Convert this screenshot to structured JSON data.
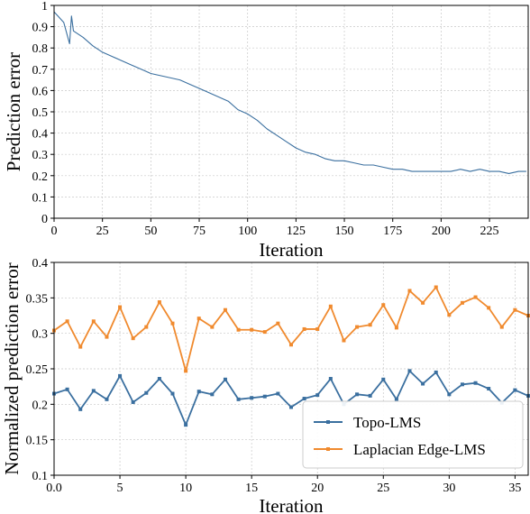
{
  "chart_data": [
    {
      "type": "line",
      "xlabel": "Iteration",
      "ylabel": "Prediction error",
      "xlim": [
        0,
        245
      ],
      "ylim": [
        0,
        1
      ],
      "xticks": [
        0,
        25,
        50,
        75,
        100,
        125,
        150,
        175,
        200,
        225
      ],
      "xtick_labels": [
        "0",
        "25",
        "50",
        "75",
        "100",
        "125",
        "150",
        "175",
        "200",
        "225"
      ],
      "yticks": [
        0,
        0.1,
        0.2,
        0.3,
        0.4,
        0.5,
        0.6,
        0.7,
        0.8,
        0.9,
        1
      ],
      "ytick_labels": [
        "0",
        "0.1",
        "0.2",
        "0.3",
        "0.4",
        "0.5",
        "0.6",
        "0.7",
        "0.8",
        "0.9",
        "1"
      ],
      "grid": true,
      "series": [
        {
          "color": "#3a6f9f",
          "x": [
            0,
            5,
            8,
            9,
            10,
            15,
            20,
            25,
            30,
            35,
            40,
            45,
            50,
            55,
            60,
            65,
            70,
            75,
            80,
            85,
            90,
            95,
            100,
            105,
            110,
            115,
            120,
            125,
            130,
            135,
            140,
            145,
            150,
            155,
            160,
            165,
            170,
            175,
            180,
            185,
            190,
            195,
            200,
            205,
            210,
            215,
            220,
            225,
            230,
            235,
            240,
            244
          ],
          "y": [
            0.97,
            0.92,
            0.82,
            0.95,
            0.88,
            0.85,
            0.81,
            0.78,
            0.76,
            0.74,
            0.72,
            0.7,
            0.68,
            0.67,
            0.66,
            0.65,
            0.63,
            0.61,
            0.59,
            0.57,
            0.55,
            0.51,
            0.49,
            0.46,
            0.42,
            0.39,
            0.36,
            0.33,
            0.31,
            0.3,
            0.28,
            0.27,
            0.27,
            0.26,
            0.25,
            0.25,
            0.24,
            0.23,
            0.23,
            0.22,
            0.22,
            0.22,
            0.22,
            0.22,
            0.23,
            0.22,
            0.23,
            0.22,
            0.22,
            0.21,
            0.22,
            0.22
          ]
        }
      ]
    },
    {
      "type": "line",
      "xlabel": "Iteration",
      "ylabel": "Normalized prediction error",
      "xlim": [
        0,
        36
      ],
      "ylim": [
        0.1,
        0.4
      ],
      "xticks": [
        0,
        5,
        10,
        15,
        20,
        25,
        30,
        35
      ],
      "xtick_labels": [
        "0.0",
        "5",
        "10",
        "15",
        "20",
        "25",
        "30",
        "35"
      ],
      "yticks": [
        0.1,
        0.15,
        0.2,
        0.25,
        0.3,
        0.35,
        0.4
      ],
      "ytick_labels": [
        "0.1",
        "0.15",
        "0.2",
        "0.25",
        "0.3",
        "0.35",
        "0.4"
      ],
      "grid": true,
      "legend_position": "bottom-right",
      "x": [
        0,
        1,
        2,
        3,
        4,
        5,
        6,
        7,
        8,
        9,
        10,
        11,
        12,
        13,
        14,
        15,
        16,
        17,
        18,
        19,
        20,
        21,
        22,
        23,
        24,
        25,
        26,
        27,
        28,
        29,
        30,
        31,
        32,
        33,
        34,
        35,
        36
      ],
      "series": [
        {
          "name": "Topo-LMS",
          "color": "#3a6f9f",
          "values": [
            0.215,
            0.221,
            0.193,
            0.219,
            0.207,
            0.24,
            0.203,
            0.216,
            0.236,
            0.215,
            0.171,
            0.218,
            0.214,
            0.235,
            0.207,
            0.209,
            0.211,
            0.215,
            0.196,
            0.208,
            0.213,
            0.236,
            0.2,
            0.214,
            0.212,
            0.235,
            0.207,
            0.247,
            0.229,
            0.245,
            0.214,
            0.228,
            0.23,
            0.222,
            0.202,
            0.22,
            0.212
          ]
        },
        {
          "name": "Laplacian Edge-LMS",
          "color": "#f08a2e",
          "values": [
            0.304,
            0.317,
            0.281,
            0.317,
            0.295,
            0.337,
            0.293,
            0.309,
            0.344,
            0.314,
            0.247,
            0.321,
            0.309,
            0.333,
            0.305,
            0.305,
            0.302,
            0.314,
            0.284,
            0.306,
            0.306,
            0.338,
            0.29,
            0.309,
            0.312,
            0.34,
            0.308,
            0.36,
            0.343,
            0.365,
            0.326,
            0.343,
            0.351,
            0.336,
            0.309,
            0.333,
            0.325
          ]
        }
      ]
    }
  ]
}
